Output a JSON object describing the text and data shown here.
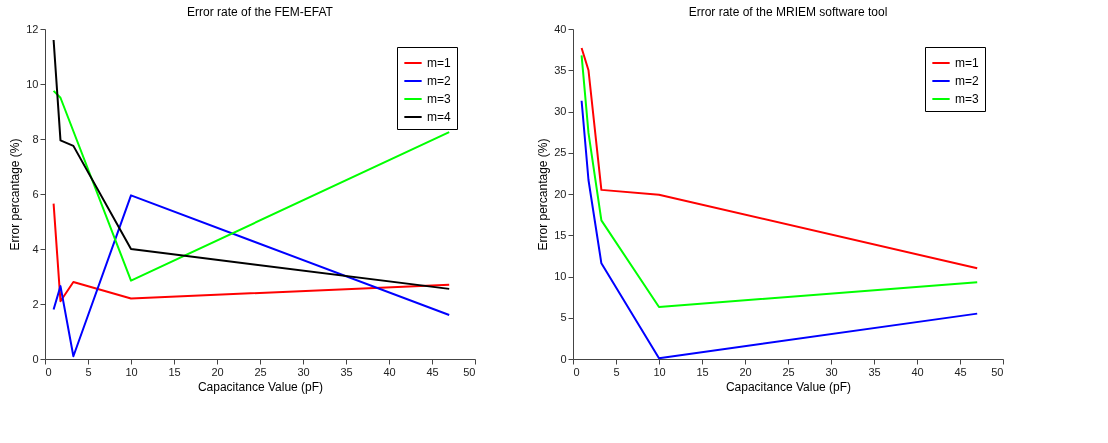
{
  "chart_data": [
    {
      "type": "line",
      "title": "Error rate of the FEM-EFAT",
      "xlabel": "Capacitance Value (pF)",
      "ylabel": "Error percantage (%)",
      "xlim": [
        0,
        50
      ],
      "xticks": [
        0,
        5,
        10,
        15,
        20,
        25,
        30,
        35,
        40,
        45,
        50
      ],
      "ylim": [
        0,
        12
      ],
      "yticks": [
        0,
        2,
        4,
        6,
        8,
        10,
        12
      ],
      "grid": false,
      "legend": "top right",
      "x": [
        1,
        1.8,
        3.3,
        10,
        47
      ],
      "series": [
        {
          "name": "m=1",
          "color": "#ff0000",
          "values": [
            5.65,
            2.1,
            2.8,
            2.2,
            2.7
          ]
        },
        {
          "name": "m=2",
          "color": "#0000ff",
          "values": [
            1.8,
            2.65,
            0.1,
            5.95,
            1.6
          ]
        },
        {
          "name": "m=3",
          "color": "#00ff00",
          "x": [
            1,
            1.8,
            10,
            47
          ],
          "values": [
            9.75,
            9.5,
            2.85,
            8.25
          ]
        },
        {
          "name": "m=4",
          "color": "#000000",
          "values": [
            11.6,
            7.95,
            7.75,
            4.0,
            2.55
          ]
        }
      ]
    },
    {
      "type": "line",
      "title": "Error rate of the MRIEM software tool",
      "xlabel": "Capacitance Value (pF)",
      "ylabel": "Error percantage (%)",
      "xlim": [
        0,
        50
      ],
      "xticks": [
        0,
        5,
        10,
        15,
        20,
        25,
        30,
        35,
        40,
        45,
        50
      ],
      "ylim": [
        0,
        40
      ],
      "yticks": [
        0,
        5,
        10,
        15,
        20,
        25,
        30,
        35,
        40
      ],
      "grid": false,
      "legend": "top right",
      "x": [
        1,
        1.8,
        3.3,
        10,
        47
      ],
      "series": [
        {
          "name": "m=1",
          "color": "#ff0000",
          "values": [
            37.7,
            35.0,
            20.5,
            19.9,
            11.0
          ]
        },
        {
          "name": "m=2",
          "color": "#0000ff",
          "values": [
            31.3,
            21.7,
            11.6,
            0.1,
            5.5
          ]
        },
        {
          "name": "m=3",
          "color": "#00ff00",
          "values": [
            36.8,
            27.4,
            16.8,
            6.3,
            9.3
          ]
        }
      ]
    }
  ]
}
